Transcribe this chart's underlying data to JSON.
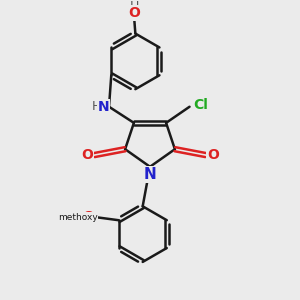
{
  "bg_color": "#ebebeb",
  "bond_color": "#1a1a1a",
  "bond_width": 1.8,
  "figsize": [
    3.0,
    3.0
  ],
  "dpi": 100,
  "xlim": [
    0,
    10
  ],
  "ylim": [
    0,
    10
  ],
  "colors": {
    "N": "#2222cc",
    "O": "#dd2222",
    "Cl": "#22aa22",
    "H": "#555555",
    "C": "#1a1a1a"
  }
}
